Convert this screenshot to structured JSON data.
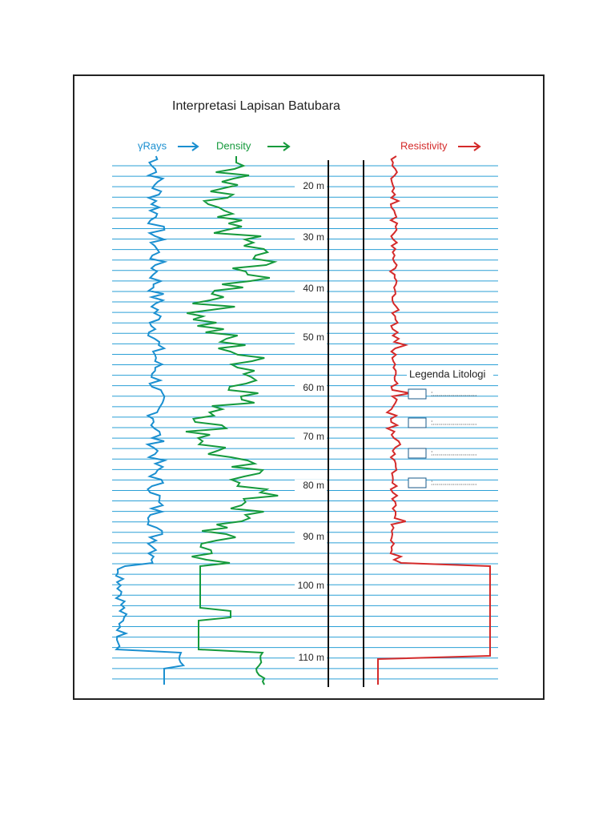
{
  "title": "Interpretasi Lapisan Batubara",
  "headers": {
    "gamma": "γRays",
    "density": "Density",
    "resistivity": "Resistivity"
  },
  "depths": [
    "20 m",
    "30 m",
    "40 m",
    "50 m",
    "60 m",
    "70 m",
    "80 m",
    "90 m",
    "100 m",
    "110 m"
  ],
  "legend": {
    "title": "Legenda Litologi",
    "items": [
      ":......................",
      ":......................",
      ":......................",
      ":......................"
    ]
  }
}
